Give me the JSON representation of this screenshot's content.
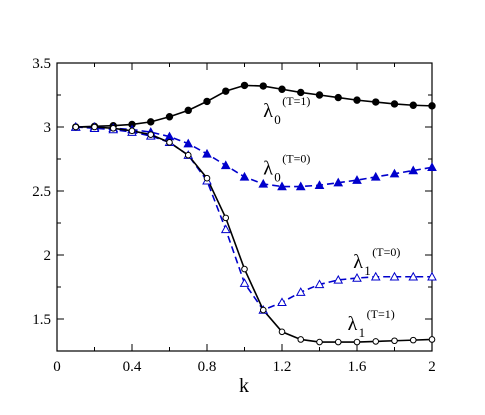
{
  "chart_data": {
    "type": "line",
    "xlabel": "k",
    "ylabel": "",
    "xlim": [
      0,
      2
    ],
    "ylim": [
      1.25,
      3.5
    ],
    "xticks": [
      "0",
      "0.4",
      "0.8",
      "1.2",
      "1.6",
      "2"
    ],
    "yticks": [
      "1.5",
      "2",
      "2.5",
      "3",
      "3.5"
    ],
    "series": [
      {
        "key": "l0_T1",
        "color": "#000000",
        "dash": "solid",
        "marker": "filled-circle",
        "x": [
          0.1,
          0.2,
          0.3,
          0.4,
          0.5,
          0.6,
          0.7,
          0.8,
          0.9,
          1.0,
          1.1,
          1.2,
          1.3,
          1.4,
          1.5,
          1.6,
          1.7,
          1.8,
          1.9,
          2.0
        ],
        "y": [
          3.0,
          3.005,
          3.01,
          3.02,
          3.04,
          3.08,
          3.13,
          3.2,
          3.28,
          3.325,
          3.32,
          3.295,
          3.27,
          3.25,
          3.23,
          3.21,
          3.195,
          3.18,
          3.17,
          3.165
        ]
      },
      {
        "key": "l0_T0",
        "color": "#0000cc",
        "dash": "dashed",
        "marker": "filled-triangle",
        "x": [
          0.1,
          0.2,
          0.3,
          0.4,
          0.5,
          0.6,
          0.7,
          0.8,
          0.9,
          1.0,
          1.1,
          1.2,
          1.3,
          1.4,
          1.5,
          1.6,
          1.7,
          1.8,
          1.9,
          2.0
        ],
        "y": [
          3.0,
          3.0,
          2.99,
          2.98,
          2.96,
          2.925,
          2.87,
          2.79,
          2.7,
          2.61,
          2.555,
          2.535,
          2.535,
          2.545,
          2.565,
          2.585,
          2.61,
          2.635,
          2.66,
          2.685
        ]
      },
      {
        "key": "l1_T0",
        "color": "#0000cc",
        "dash": "dashed",
        "marker": "open-triangle",
        "x": [
          0.1,
          0.2,
          0.3,
          0.4,
          0.5,
          0.6,
          0.7,
          0.8,
          0.9,
          1.0,
          1.1,
          1.2,
          1.3,
          1.4,
          1.5,
          1.6,
          1.7,
          1.8,
          1.9,
          2.0
        ],
        "y": [
          3.0,
          2.99,
          2.98,
          2.96,
          2.93,
          2.88,
          2.78,
          2.58,
          2.2,
          1.78,
          1.57,
          1.63,
          1.71,
          1.77,
          1.805,
          1.82,
          1.83,
          1.83,
          1.83,
          1.83
        ]
      },
      {
        "key": "l1_T1",
        "color": "#000000",
        "dash": "solid",
        "marker": "open-circle",
        "x": [
          0.1,
          0.2,
          0.3,
          0.4,
          0.5,
          0.6,
          0.7,
          0.8,
          0.9,
          1.0,
          1.1,
          1.2,
          1.3,
          1.4,
          1.5,
          1.6,
          1.7,
          1.8,
          1.9,
          2.0
        ],
        "y": [
          3.0,
          3.0,
          2.99,
          2.97,
          2.94,
          2.88,
          2.78,
          2.6,
          2.29,
          1.89,
          1.57,
          1.4,
          1.34,
          1.32,
          1.32,
          1.32,
          1.325,
          1.33,
          1.335,
          1.34
        ]
      }
    ],
    "annotations": [
      {
        "key": "a_l0_T1",
        "base": "λ",
        "sub": "0",
        "sup": "(T=1)",
        "x": 1.1,
        "y": 3.08
      },
      {
        "key": "a_l0_T0",
        "base": "λ",
        "sub": "0",
        "sup": "(T=0)",
        "x": 1.1,
        "y": 2.63
      },
      {
        "key": "a_l1_T0",
        "base": "λ",
        "sub": "1",
        "sup": "(T=0)",
        "x": 1.58,
        "y": 1.9
      },
      {
        "key": "a_l1_T1",
        "base": "λ",
        "sub": "1",
        "sup": "(T=1)",
        "x": 1.55,
        "y": 1.415
      }
    ]
  }
}
